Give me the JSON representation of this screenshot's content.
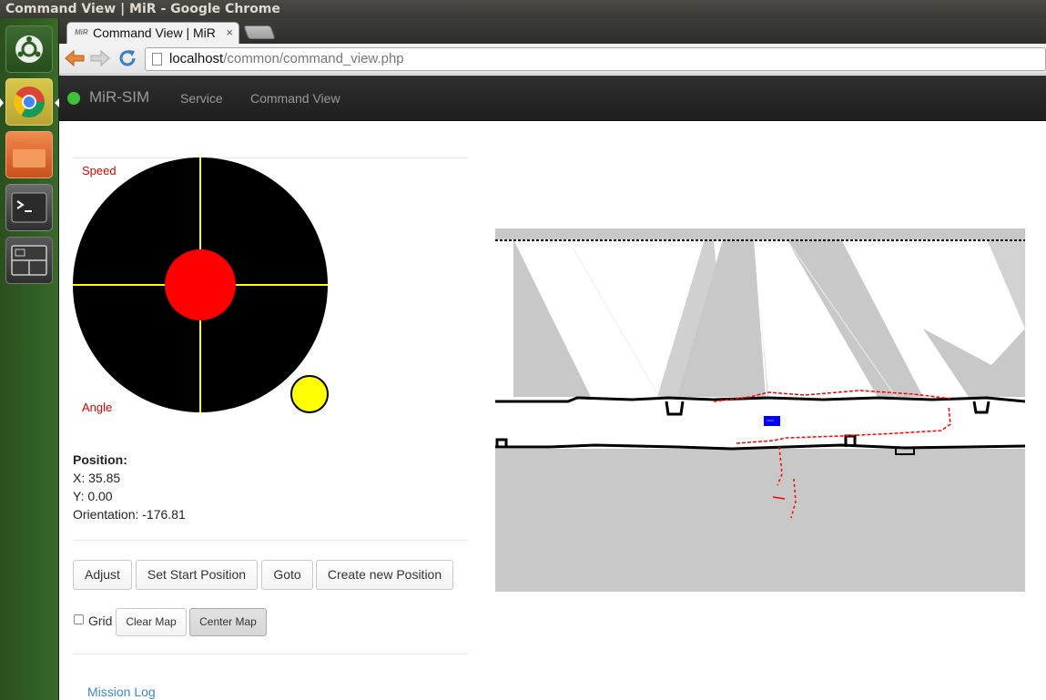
{
  "os": {
    "window_title": "Command View | MiR - Google Chrome"
  },
  "launcher": {
    "items": [
      "ubuntu-home",
      "chrome",
      "files",
      "terminal",
      "workspace-switcher"
    ]
  },
  "browser": {
    "tab_title": "Command View | MiR",
    "tab_favicon_text": "MiR",
    "url_host": "localhost",
    "url_path": "/common/command_view.php"
  },
  "navbar": {
    "brand": "MiR-SIM",
    "status_color": "#3ec23e",
    "links": [
      "Service",
      "Command View"
    ]
  },
  "joystick": {
    "speed_label": "Speed",
    "angle_label": "Angle"
  },
  "position": {
    "title": "Position:",
    "x": "X: 35.85",
    "y": "Y: 0.00",
    "orientation": "Orientation: -176.81"
  },
  "buttons": {
    "adjust": "Adjust",
    "set_start": "Set Start Position",
    "goto": "Goto",
    "create_position": "Create new Position",
    "clear_map": "Clear Map",
    "center_map": "Center Map"
  },
  "grid": {
    "label": "Grid",
    "checked": false
  },
  "mission_log": "Mission Log",
  "colors": {
    "joystick_bg": "#000000",
    "joystick_crosshair": "#ffff00",
    "joystick_knob": "#ff0000",
    "indicator": "#ffff00",
    "robot": "#0000ff",
    "laser": "#ff0000",
    "map_unknown": "#c8c8c8"
  }
}
